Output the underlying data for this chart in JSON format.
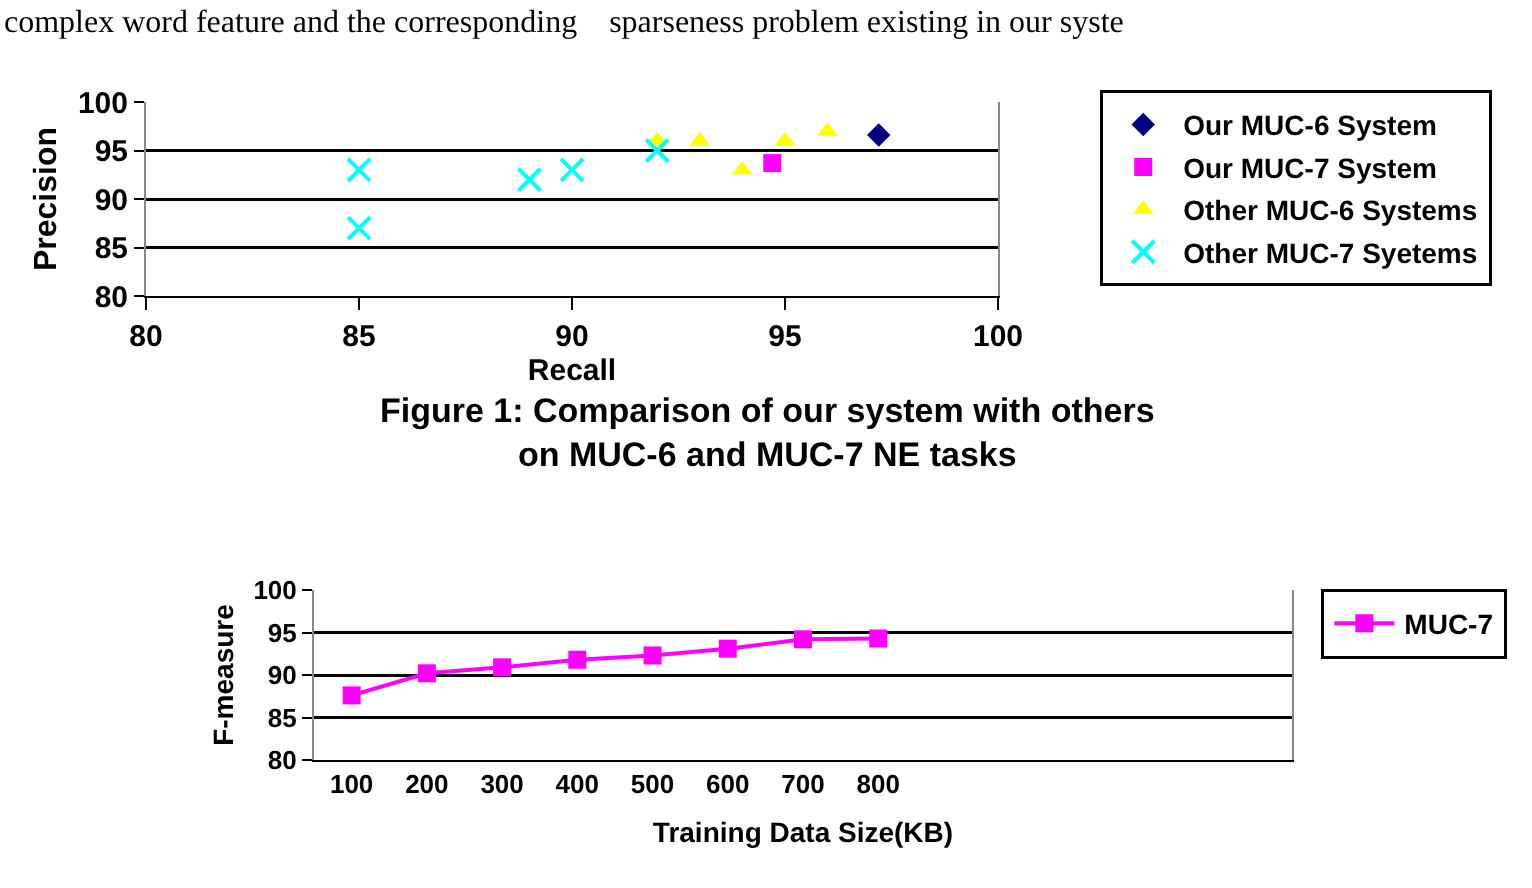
{
  "chart_data": [
    {
      "type": "scatter",
      "xlabel": "Recall",
      "ylabel": "Precision",
      "xlim": [
        80,
        100
      ],
      "xticks": [
        80,
        85,
        90,
        95,
        100
      ],
      "ylim": [
        80,
        100
      ],
      "yticks": [
        80,
        85,
        90,
        95,
        100
      ],
      "grid": "y",
      "legend": "right",
      "annotations": [
        "complex word feature and the corresponding    sparseness problem existing in our syste",
        "Figure 1: Comparison of our system with others\non MUC-6 and MUC-7 NE tasks"
      ],
      "series": [
        {
          "name": "Our MUC-6 System",
          "color": "#000080",
          "marker": "diamond",
          "x": [
            97.2
          ],
          "values": [
            96.6
          ]
        },
        {
          "name": "Our MUC-7 System",
          "color": "#ff00ff",
          "marker": "square",
          "x": [
            94.7
          ],
          "values": [
            93.7
          ]
        },
        {
          "name": "Other MUC-6 Systems",
          "color": "#ffff00",
          "marker": "triangle",
          "x": [
            92,
            93,
            94,
            95,
            96
          ],
          "values": [
            96,
            96,
            93,
            96,
            97
          ]
        },
        {
          "name": "Other MUC-7 Syetems",
          "color": "#00ffff",
          "marker": "cross",
          "x": [
            85,
            85,
            89,
            90,
            92
          ],
          "values": [
            93,
            87,
            92,
            93,
            95
          ]
        }
      ]
    },
    {
      "type": "line",
      "xlabel": "Training Data Size(KB)",
      "ylabel": "F-measure",
      "ylim": [
        80,
        100
      ],
      "yticks": [
        80,
        85,
        90,
        95,
        100
      ],
      "grid": "y",
      "legend": "right",
      "marker": "square",
      "categories": [
        "100",
        "200",
        "300",
        "400",
        "500",
        "600",
        "700",
        "800",
        null,
        null,
        null,
        null,
        null
      ],
      "series": [
        {
          "name": "MUC-7",
          "color": "#ff00ff",
          "values": [
            87.6,
            90.2,
            90.9,
            91.8,
            92.3,
            93.1,
            94.2,
            94.3,
            null,
            null,
            null,
            null,
            null
          ]
        }
      ]
    }
  ]
}
